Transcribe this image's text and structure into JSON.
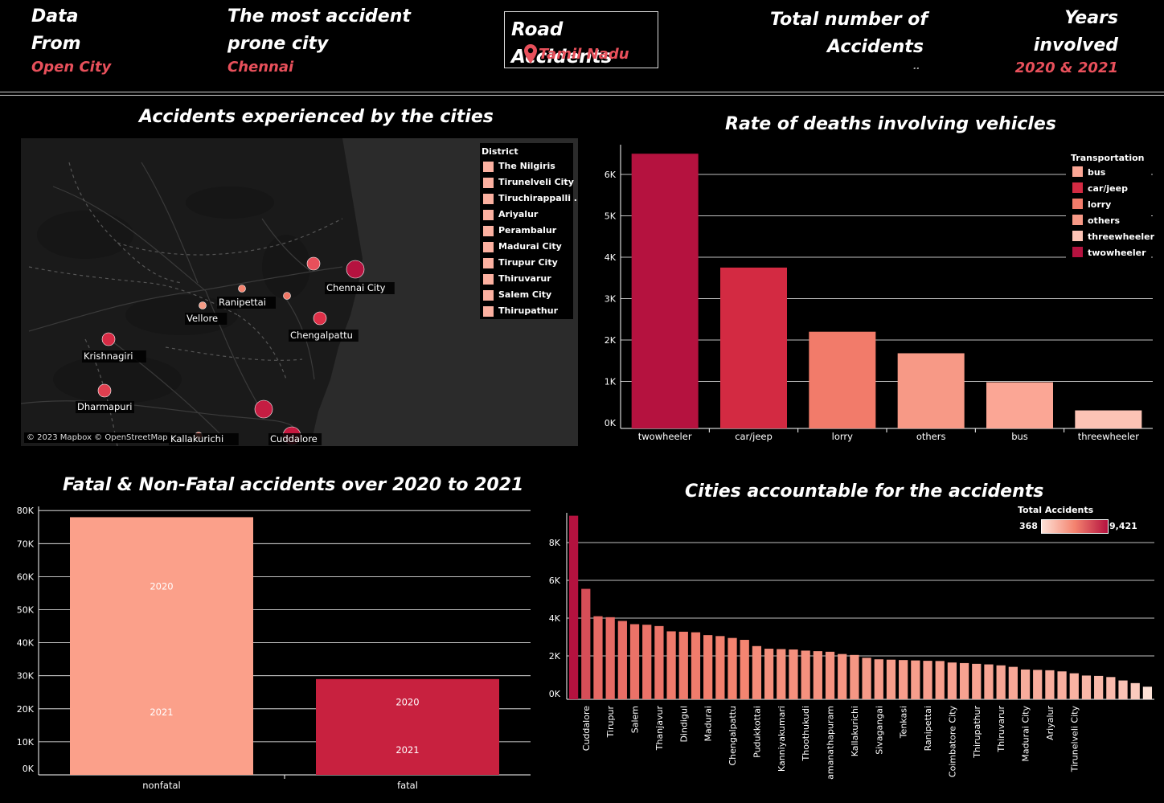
{
  "header": {
    "data_label_1": "Data",
    "data_label_2": "From",
    "data_source": "Open City",
    "prone_label_1": "The most accident",
    "prone_label_2": "prone city",
    "prone_city": "Chennai",
    "title": "Road Accidents",
    "region": "Tamil Nadu",
    "total_label_1": "Total number of",
    "total_label_2": "Accidents",
    "total_value": "..",
    "years_label_1": "Years",
    "years_label_2": "involved",
    "years_value": "2020 & 2021"
  },
  "map": {
    "title": "Accidents experienced by the cities",
    "attribution": "© 2023 Mapbox © OpenStreetMap",
    "legend_title": "District",
    "legend_items": [
      "The Nilgiris",
      "Tirunelveli  City",
      "Tiruchirappalli ..",
      "Ariyalur",
      "Perambalur",
      "Madurai City",
      "Tirupur City",
      "Thiruvarur",
      "Salem City",
      "Thirupathur"
    ],
    "cities": [
      {
        "name": "Chennai City",
        "color": "#b5123f",
        "size": "large"
      },
      {
        "name": "Ranipettai",
        "color": "#f4836f",
        "size": "small"
      },
      {
        "name": "Vellore",
        "color": "#f69c86",
        "size": "small"
      },
      {
        "name": "Chengalpattu",
        "color": "#de3048",
        "size": "medium"
      },
      {
        "name": "Krishnagiri",
        "color": "#d72b45",
        "size": "medium"
      },
      {
        "name": "Dharmapuri",
        "color": "#e03f4f",
        "size": "medium"
      },
      {
        "name": "Kallakurichi",
        "color": "#f08373",
        "size": "small"
      },
      {
        "name": "Cuddalore",
        "color": "#c8183f",
        "size": "large"
      }
    ],
    "unlabeled_dots": [
      {
        "color": "#e8505b",
        "size": "medium"
      },
      {
        "color": "#f07766",
        "size": "small"
      },
      {
        "color": "#c51d42",
        "size": "large"
      }
    ]
  },
  "chart_data": [
    {
      "type": "bar",
      "title": "Rate of deaths involving vehicles",
      "categories": [
        "twowheeler",
        "car/jeep",
        "lorry",
        "others",
        "bus",
        "threewheeler"
      ],
      "values": [
        6500,
        3750,
        2200,
        1680,
        980,
        300
      ],
      "colors": [
        "#b5123f",
        "#d32a42",
        "#f27b6a",
        "#f79986",
        "#fba695",
        "#fcc3b5"
      ],
      "yticks": [
        "0K",
        "1K",
        "2K",
        "3K",
        "4K",
        "5K",
        "6K"
      ],
      "ylim": [
        0,
        7000
      ],
      "legend_title": "Transportation",
      "legend": [
        {
          "name": "bus",
          "color": "#fba695"
        },
        {
          "name": "car/jeep",
          "color": "#d32a42"
        },
        {
          "name": "lorry",
          "color": "#f27b6a"
        },
        {
          "name": "others",
          "color": "#f79986"
        },
        {
          "name": "threewheeler",
          "color": "#fcc3b5"
        },
        {
          "name": "twowheeler",
          "color": "#b5123f"
        }
      ]
    },
    {
      "type": "bar",
      "title": "Fatal & Non-Fatal accidents over 2020 to 2021",
      "categories": [
        "nonfatal",
        "fatal"
      ],
      "values": [
        78000,
        29000
      ],
      "colors": [
        "#fba08a",
        "#c8213f"
      ],
      "segment_labels": [
        [
          {
            "label": "2020",
            "at": 57000
          },
          {
            "label": "2021",
            "at": 19000
          }
        ],
        [
          {
            "label": "2020",
            "at": 22000
          },
          {
            "label": "2021",
            "at": 7500
          }
        ]
      ],
      "yticks": [
        "0K",
        "10K",
        "20K",
        "30K",
        "40K",
        "50K",
        "60K",
        "70K",
        "80K"
      ],
      "ylim": [
        0,
        82000
      ]
    },
    {
      "type": "bar",
      "title": "Cities accountable for the accidents",
      "legend_title": "Total Accidents",
      "legend_min": "368",
      "legend_max": "9,421",
      "yticks": [
        "0K",
        "2K",
        "4K",
        "6K",
        "8K"
      ],
      "ylim": [
        0,
        9800
      ],
      "values": [
        9421,
        5550,
        4100,
        4050,
        3850,
        3680,
        3650,
        3580,
        3300,
        3280,
        3250,
        3100,
        3050,
        2950,
        2850,
        2520,
        2380,
        2360,
        2340,
        2280,
        2250,
        2220,
        2100,
        2050,
        1900,
        1820,
        1800,
        1780,
        1760,
        1740,
        1730,
        1650,
        1620,
        1580,
        1550,
        1500,
        1420,
        1280,
        1260,
        1240,
        1180,
        1080,
        960,
        940,
        880,
        700,
        560,
        368
      ],
      "tick_labels": [
        "Cuddalore",
        "Tirupur",
        "Salem",
        "Thanjavur",
        "Dindigul",
        "Madurai",
        "Chengalpattu",
        "Pudukkottai",
        "Kanniyakumari",
        "Thoothukudi",
        "Ramanathapuram",
        "Kallakurichi",
        "Sivagangai",
        "Tenkasi",
        "Ranipettai",
        "Coimbatore City",
        "Thirupathur",
        "Thiruvarur",
        "Madurai City",
        "Ariyalur",
        "Tirunelveli  City"
      ]
    }
  ]
}
